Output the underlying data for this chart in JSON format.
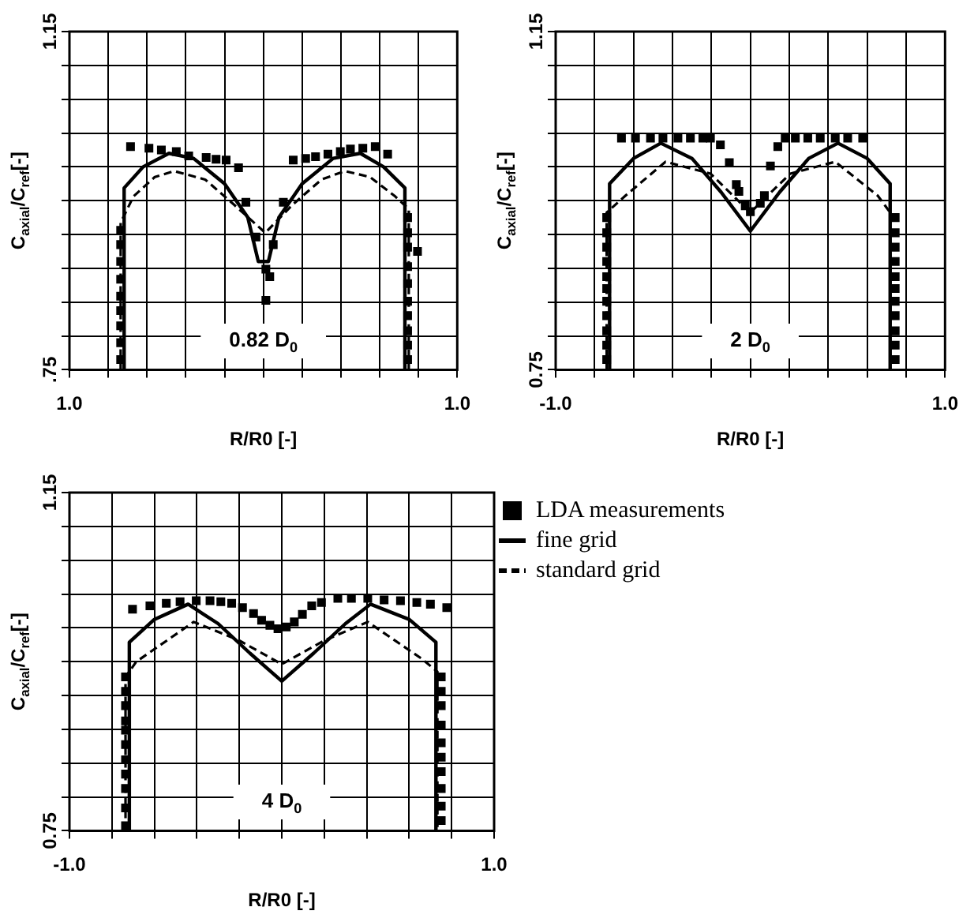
{
  "chart_data": [
    {
      "type": "line",
      "xlabel": "R/R0 [-]",
      "ylabel": "C$_{axial}$/C$_{ref}$[-]",
      "annotations": [
        "0.82 D$_{0}$"
      ],
      "grid": true,
      "legend": false,
      "xlim": [
        -1,
        1
      ],
      "ylim": [
        0.75,
        1.15
      ],
      "xticks": [
        {
          "value": -1,
          "label": "1.0"
        },
        {
          "value": -0.8,
          "label": null
        },
        {
          "value": -0.6,
          "label": null
        },
        {
          "value": -0.4,
          "label": null
        },
        {
          "value": -0.2,
          "label": null
        },
        {
          "value": 0,
          "label": null
        },
        {
          "value": 0.2,
          "label": null
        },
        {
          "value": 0.4,
          "label": null
        },
        {
          "value": 0.6,
          "label": null
        },
        {
          "value": 0.8,
          "label": null
        },
        {
          "value": 1,
          "label": "1.0"
        }
      ],
      "yticks": [
        {
          "value": 0.75,
          "label": ".75"
        },
        {
          "value": 0.79,
          "label": null
        },
        {
          "value": 0.83,
          "label": null
        },
        {
          "value": 0.87,
          "label": null
        },
        {
          "value": 0.91,
          "label": null
        },
        {
          "value": 0.95,
          "label": null
        },
        {
          "value": 0.99,
          "label": null
        },
        {
          "value": 1.03,
          "label": null
        },
        {
          "value": 1.07,
          "label": null
        },
        {
          "value": 1.11,
          "label": null
        },
        {
          "value": 1.15,
          "label": "1.15"
        }
      ],
      "series": [
        {
          "type": "scatter",
          "marker": "square",
          "color": "#000000",
          "x": [
            -0.685,
            -0.59,
            -0.526,
            -0.449,
            -0.385,
            -0.295,
            -0.244,
            -0.192,
            -0.128,
            -0.09,
            -0.038,
            0.013,
            0.033,
            0.013,
            0.051,
            0.103,
            0.154,
            0.218,
            0.269,
            0.333,
            0.397,
            0.449,
            0.513,
            0.577,
            0.641,
            -0.736,
            -0.736,
            -0.736,
            -0.736,
            -0.736,
            -0.736,
            -0.736,
            -0.736,
            -0.736,
            0.744,
            0.744,
            0.744,
            0.744,
            0.744,
            0.744,
            0.744,
            0.744,
            0.744,
            0.744,
            0.795
          ],
          "values": [
            1.014,
            1.012,
            1.01,
            1.008,
            1.003,
            1.001,
            0.999,
            0.998,
            0.989,
            0.948,
            0.907,
            0.869,
            0.86,
            0.832,
            0.898,
            0.948,
            0.998,
            1.0,
            1.002,
            1.005,
            1.008,
            1.011,
            1.012,
            1.014,
            1.005,
            0.915,
            0.898,
            0.878,
            0.857,
            0.837,
            0.82,
            0.802,
            0.782,
            0.762,
            0.93,
            0.912,
            0.895,
            0.872,
            0.852,
            0.831,
            0.814,
            0.796,
            0.779,
            0.762,
            0.89
          ]
        },
        {
          "type": "line",
          "marker": "none",
          "line_style": "solid",
          "color": "#000000",
          "x": [
            -0.718,
            -0.718,
            -0.62,
            -0.487,
            -0.36,
            -0.2,
            -0.08,
            -0.026,
            0.026,
            0.08,
            0.2,
            0.36,
            0.5,
            0.62,
            0.73,
            0.73
          ],
          "values": [
            0.75,
            0.965,
            0.99,
            1.006,
            1.0,
            0.97,
            0.93,
            0.878,
            0.878,
            0.93,
            0.97,
            1.0,
            1.006,
            0.99,
            0.965,
            0.75
          ]
        },
        {
          "type": "line",
          "marker": "none",
          "line_style": "dashed",
          "color": "#000000",
          "x": [
            -0.736,
            -0.736,
            -0.67,
            -0.56,
            -0.46,
            -0.3,
            -0.15,
            0.01,
            0.15,
            0.3,
            0.42,
            0.55,
            0.68,
            0.75,
            0.75
          ],
          "values": [
            0.75,
            0.924,
            0.955,
            0.978,
            0.985,
            0.975,
            0.945,
            0.912,
            0.945,
            0.975,
            0.985,
            0.978,
            0.955,
            0.94,
            0.75
          ]
        }
      ]
    },
    {
      "type": "line",
      "xlabel": "R/R0 [-]",
      "ylabel": "C$_{axial}$/C$_{ref}$[-]",
      "annotations": [
        "2 D$_{0}$"
      ],
      "grid": true,
      "legend": false,
      "xlim": [
        -1,
        1
      ],
      "ylim": [
        0.75,
        1.15
      ],
      "xticks": [
        {
          "value": -1,
          "label": "-1.0"
        },
        {
          "value": -0.8,
          "label": null
        },
        {
          "value": -0.6,
          "label": null
        },
        {
          "value": -0.4,
          "label": null
        },
        {
          "value": -0.2,
          "label": null
        },
        {
          "value": 0,
          "label": null
        },
        {
          "value": 0.2,
          "label": null
        },
        {
          "value": 0.4,
          "label": null
        },
        {
          "value": 0.6,
          "label": null
        },
        {
          "value": 0.8,
          "label": null
        },
        {
          "value": 1,
          "label": "1.0"
        }
      ],
      "yticks": [
        {
          "value": 0.75,
          "label": "0.75"
        },
        {
          "value": 0.79,
          "label": null
        },
        {
          "value": 0.83,
          "label": null
        },
        {
          "value": 0.87,
          "label": null
        },
        {
          "value": 0.91,
          "label": null
        },
        {
          "value": 0.95,
          "label": null
        },
        {
          "value": 0.99,
          "label": null
        },
        {
          "value": 1.03,
          "label": null
        },
        {
          "value": 1.07,
          "label": null
        },
        {
          "value": 1.11,
          "label": null
        },
        {
          "value": 1.15,
          "label": "1.15"
        }
      ],
      "series": [
        {
          "type": "scatter",
          "marker": "square",
          "color": "#000000",
          "x": [
            -0.662,
            -0.59,
            -0.513,
            -0.449,
            -0.372,
            -0.308,
            -0.244,
            -0.205,
            -0.154,
            -0.108,
            -0.072,
            -0.059,
            -0.026,
            0.0,
            0.051,
            0.072,
            0.103,
            0.141,
            0.179,
            0.231,
            0.295,
            0.359,
            0.436,
            0.5,
            0.577,
            -0.738,
            -0.738,
            -0.738,
            -0.738,
            -0.738,
            -0.738,
            -0.738,
            -0.738,
            -0.738,
            -0.738,
            -0.738,
            0.744,
            0.744,
            0.744,
            0.744,
            0.744,
            0.744,
            0.744,
            0.744,
            0.744,
            0.744,
            0.744
          ],
          "values": [
            1.024,
            1.024,
            1.024,
            1.024,
            1.024,
            1.024,
            1.024,
            1.024,
            1.016,
            0.995,
            0.969,
            0.961,
            0.944,
            0.937,
            0.947,
            0.956,
            0.991,
            1.014,
            1.024,
            1.024,
            1.024,
            1.024,
            1.024,
            1.024,
            1.024,
            0.93,
            0.912,
            0.895,
            0.878,
            0.86,
            0.846,
            0.831,
            0.814,
            0.796,
            0.779,
            0.762,
            0.93,
            0.912,
            0.895,
            0.878,
            0.86,
            0.846,
            0.831,
            0.814,
            0.796,
            0.779,
            0.762
          ]
        },
        {
          "type": "line",
          "marker": "none",
          "line_style": "solid",
          "color": "#000000",
          "x": [
            -0.723,
            -0.723,
            -0.6,
            -0.46,
            -0.3,
            -0.15,
            0,
            0.15,
            0.3,
            0.45,
            0.6,
            0.718,
            0.718
          ],
          "values": [
            0.75,
            0.97,
            1.0,
            1.018,
            1.0,
            0.96,
            0.914,
            0.96,
            1.0,
            1.018,
            1.0,
            0.97,
            0.75
          ]
        },
        {
          "type": "line",
          "marker": "none",
          "line_style": "dashed",
          "color": "#000000",
          "x": [
            -0.738,
            -0.738,
            -0.641,
            -0.436,
            -0.205,
            0,
            0.205,
            0.436,
            0.654,
            0.718,
            0.718
          ],
          "values": [
            0.75,
            0.936,
            0.956,
            0.996,
            0.982,
            0.936,
            0.982,
            0.996,
            0.956,
            0.936,
            0.75
          ]
        }
      ]
    },
    {
      "type": "line",
      "xlabel": "R/R0 [-]",
      "ylabel": "C$_{axial}$/C$_{ref}$[-]",
      "annotations": [
        "4 D$_{0}$"
      ],
      "grid": true,
      "legend": "right",
      "xlim": [
        -1,
        1
      ],
      "ylim": [
        0.75,
        1.15
      ],
      "xticks": [
        {
          "value": -1,
          "label": "-1.0"
        },
        {
          "value": -0.8,
          "label": null
        },
        {
          "value": -0.6,
          "label": null
        },
        {
          "value": -0.4,
          "label": null
        },
        {
          "value": -0.2,
          "label": null
        },
        {
          "value": 0,
          "label": null
        },
        {
          "value": 0.2,
          "label": null
        },
        {
          "value": 0.4,
          "label": null
        },
        {
          "value": 0.6,
          "label": null
        },
        {
          "value": 0.8,
          "label": null
        },
        {
          "value": 1,
          "label": "1.0"
        }
      ],
      "yticks": [
        {
          "value": 0.75,
          "label": "0.75"
        },
        {
          "value": 0.79,
          "label": null
        },
        {
          "value": 0.83,
          "label": null
        },
        {
          "value": 0.87,
          "label": null
        },
        {
          "value": 0.91,
          "label": null
        },
        {
          "value": 0.95,
          "label": null
        },
        {
          "value": 0.99,
          "label": null
        },
        {
          "value": 1.03,
          "label": null
        },
        {
          "value": 1.07,
          "label": null
        },
        {
          "value": 1.11,
          "label": null
        },
        {
          "value": 1.15,
          "label": "1.15"
        }
      ],
      "series": [
        {
          "name": "LDA measurements",
          "type": "scatter",
          "marker": "square",
          "color": "#000000",
          "x": [
            -0.703,
            -0.621,
            -0.544,
            -0.479,
            -0.403,
            -0.338,
            -0.287,
            -0.236,
            -0.185,
            -0.133,
            -0.095,
            -0.056,
            -0.018,
            0.021,
            0.059,
            0.097,
            0.141,
            0.187,
            0.264,
            0.328,
            0.405,
            0.482,
            0.559,
            0.636,
            0.7,
            0.777,
            -0.736,
            -0.736,
            -0.736,
            -0.736,
            -0.736,
            -0.736,
            -0.736,
            -0.736,
            -0.736,
            -0.736,
            -0.736,
            0.751,
            0.751,
            0.751,
            0.751,
            0.751,
            0.751,
            0.751,
            0.751,
            0.751,
            0.751
          ],
          "values": [
            1.012,
            1.016,
            1.019,
            1.021,
            1.022,
            1.022,
            1.021,
            1.019,
            1.014,
            1.007,
            0.999,
            0.993,
            0.989,
            0.991,
            0.997,
            1.006,
            1.016,
            1.02,
            1.025,
            1.025,
            1.025,
            1.023,
            1.022,
            1.02,
            1.018,
            1.014,
            0.932,
            0.915,
            0.898,
            0.88,
            0.869,
            0.852,
            0.834,
            0.817,
            0.8,
            0.777,
            0.756,
            0.932,
            0.915,
            0.898,
            0.875,
            0.854,
            0.837,
            0.82,
            0.8,
            0.779,
            0.762
          ]
        },
        {
          "name": "fine grid",
          "type": "line",
          "marker": "none",
          "line_style": "solid",
          "color": "#000000",
          "x": [
            -0.718,
            -0.718,
            -0.6,
            -0.441,
            -0.3,
            -0.15,
            0,
            0.15,
            0.3,
            0.418,
            0.6,
            0.726,
            0.726
          ],
          "values": [
            0.75,
            0.973,
            1.0,
            1.018,
            0.995,
            0.96,
            0.927,
            0.96,
            0.995,
            1.018,
            1.0,
            0.973,
            0.75
          ]
        },
        {
          "name": "standard grid",
          "type": "line",
          "marker": "none",
          "line_style": "dashed",
          "color": "#000000",
          "x": [
            -0.736,
            -0.736,
            -0.685,
            -0.415,
            -0.2,
            0,
            0.2,
            0.405,
            0.662,
            0.733,
            0.733
          ],
          "values": [
            0.75,
            0.932,
            0.95,
            0.997,
            0.975,
            0.947,
            0.975,
            0.997,
            0.953,
            0.938,
            0.75
          ]
        }
      ]
    }
  ]
}
